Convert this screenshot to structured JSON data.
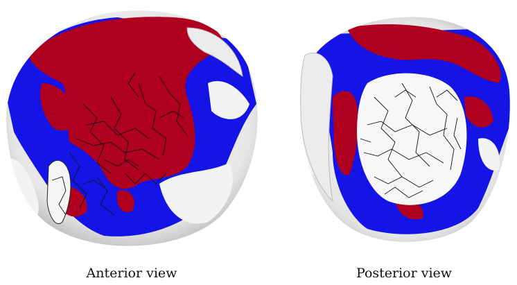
{
  "figure": {
    "panels": [
      {
        "caption": "Anterior view"
      },
      {
        "caption": "Posterior view"
      }
    ]
  },
  "colors": {
    "red_region": "#b00020",
    "blue_region": "#1414e6",
    "surface_white": "#f2f2f2",
    "fiber_lines": "#111111"
  }
}
